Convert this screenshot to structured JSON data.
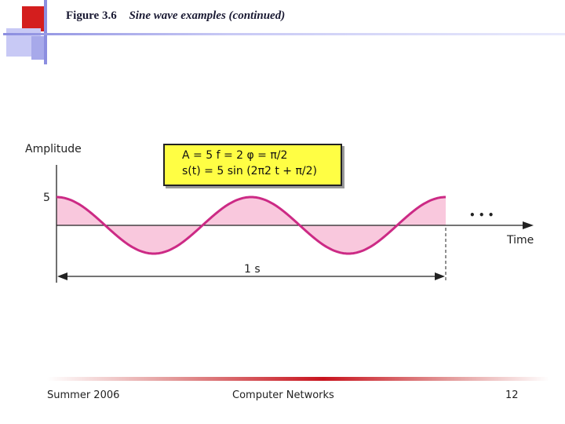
{
  "header": {
    "figure_number": "Figure 3.6",
    "caption": "Sine wave examples (continued)"
  },
  "diagram": {
    "y_label": "Amplitude",
    "x_label": "Time",
    "amplitude_tick": "5",
    "duration_label": "1 s",
    "continuation": "• • •",
    "formula_line1": "A = 5    f = 2    φ = π/2",
    "formula_line2": "s(t) = 5 sin (2π2 t + π/2)",
    "wave": {
      "amplitude": 5,
      "frequency_hz": 2,
      "phase_rad": 1.5708,
      "duration_s": 1
    }
  },
  "footer": {
    "left": "Summer 2006",
    "center": "Computer Networks",
    "right": "12"
  },
  "colors": {
    "wave": "#cc2a85",
    "wave_fill": "#f9c8dd",
    "accent_red": "#c8141e",
    "accent_blue": "#9a9ee8"
  }
}
